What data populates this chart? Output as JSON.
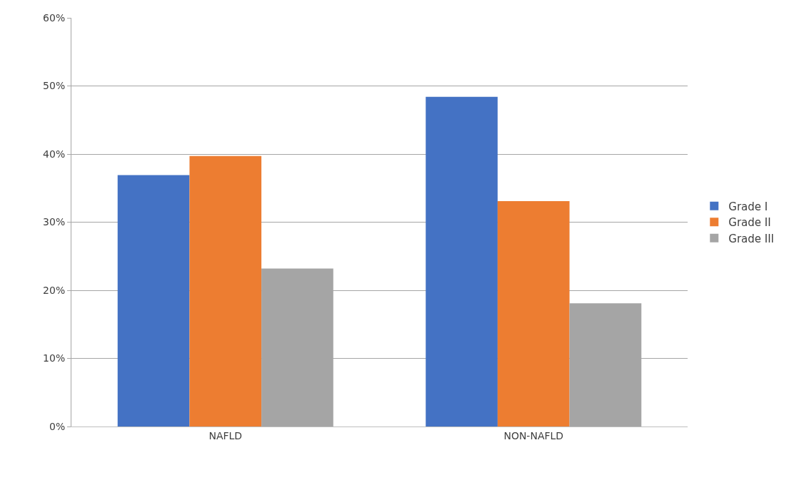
{
  "chart_data": {
    "type": "bar",
    "categories": [
      "NAFLD",
      "NON-NAFLD"
    ],
    "series": [
      {
        "name": "Grade I",
        "color": "#4472c4",
        "values": [
          36.9,
          48.4
        ]
      },
      {
        "name": "Grade II",
        "color": "#ed7d31",
        "values": [
          39.7,
          33.1
        ]
      },
      {
        "name": "Grade III",
        "color": "#a5a5a5",
        "values": [
          23.2,
          18.1
        ]
      }
    ],
    "ylim": [
      0,
      60
    ],
    "yticks": [
      {
        "value": 0,
        "label": "0%"
      },
      {
        "value": 10,
        "label": "10%"
      },
      {
        "value": 20,
        "label": "20%"
      },
      {
        "value": 30,
        "label": "30%"
      },
      {
        "value": 40,
        "label": "40%"
      },
      {
        "value": 50,
        "label": "50%"
      },
      {
        "value": 60,
        "label": "60%"
      }
    ],
    "grid": "y",
    "legend": "right"
  }
}
